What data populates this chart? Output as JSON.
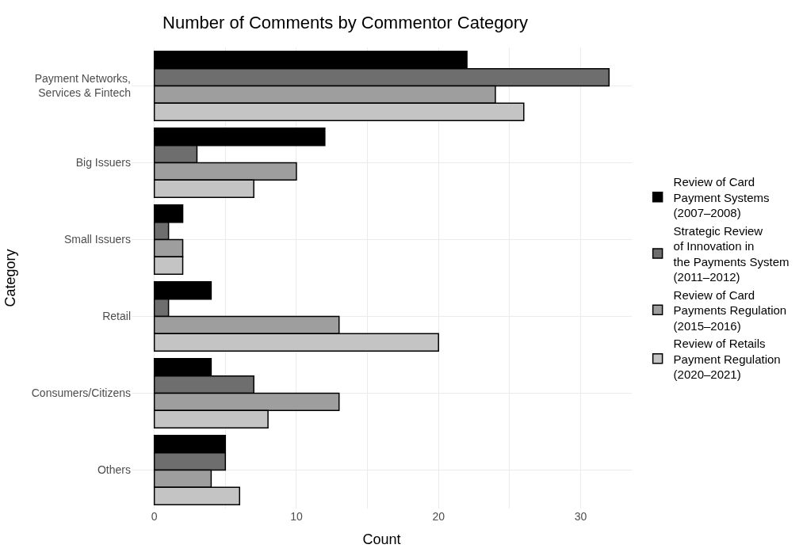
{
  "chart_data": {
    "type": "bar",
    "orientation": "horizontal",
    "title": "Number of Comments by Commentor Category",
    "xlabel": "Count",
    "ylabel": "Category",
    "categories": [
      "Payment Networks,\nServices & Fintech",
      "Big Issuers",
      "Small Issuers",
      "Retail",
      "Consumers/Citizens",
      "Others"
    ],
    "series": [
      {
        "name": "Review of Card\nPayment Systems\n(2007–2008)",
        "color": "#000000",
        "values": [
          22,
          12,
          2,
          4,
          4,
          5
        ]
      },
      {
        "name": "Strategic Review\nof Innovation in\nthe Payments System\n(2011–2012)",
        "color": "#6e6e6e",
        "values": [
          32,
          3,
          1,
          1,
          7,
          5
        ]
      },
      {
        "name": "Review of Card\nPayments Regulation\n(2015–2016)",
        "color": "#9e9e9e",
        "values": [
          24,
          10,
          2,
          13,
          13,
          4
        ]
      },
      {
        "name": "Review of Retails\nPayment Regulation\n(2020–2021)",
        "color": "#c4c4c4",
        "values": [
          26,
          7,
          2,
          20,
          8,
          6
        ]
      }
    ],
    "xlim": [
      -1.6,
      33.6
    ],
    "xticks": [
      0,
      {
        "value": 5,
        "label": null
      },
      10,
      {
        "value": 15,
        "label": null
      },
      20,
      {
        "value": 25,
        "label": null
      },
      30
    ],
    "grid": true,
    "legend": "right"
  }
}
